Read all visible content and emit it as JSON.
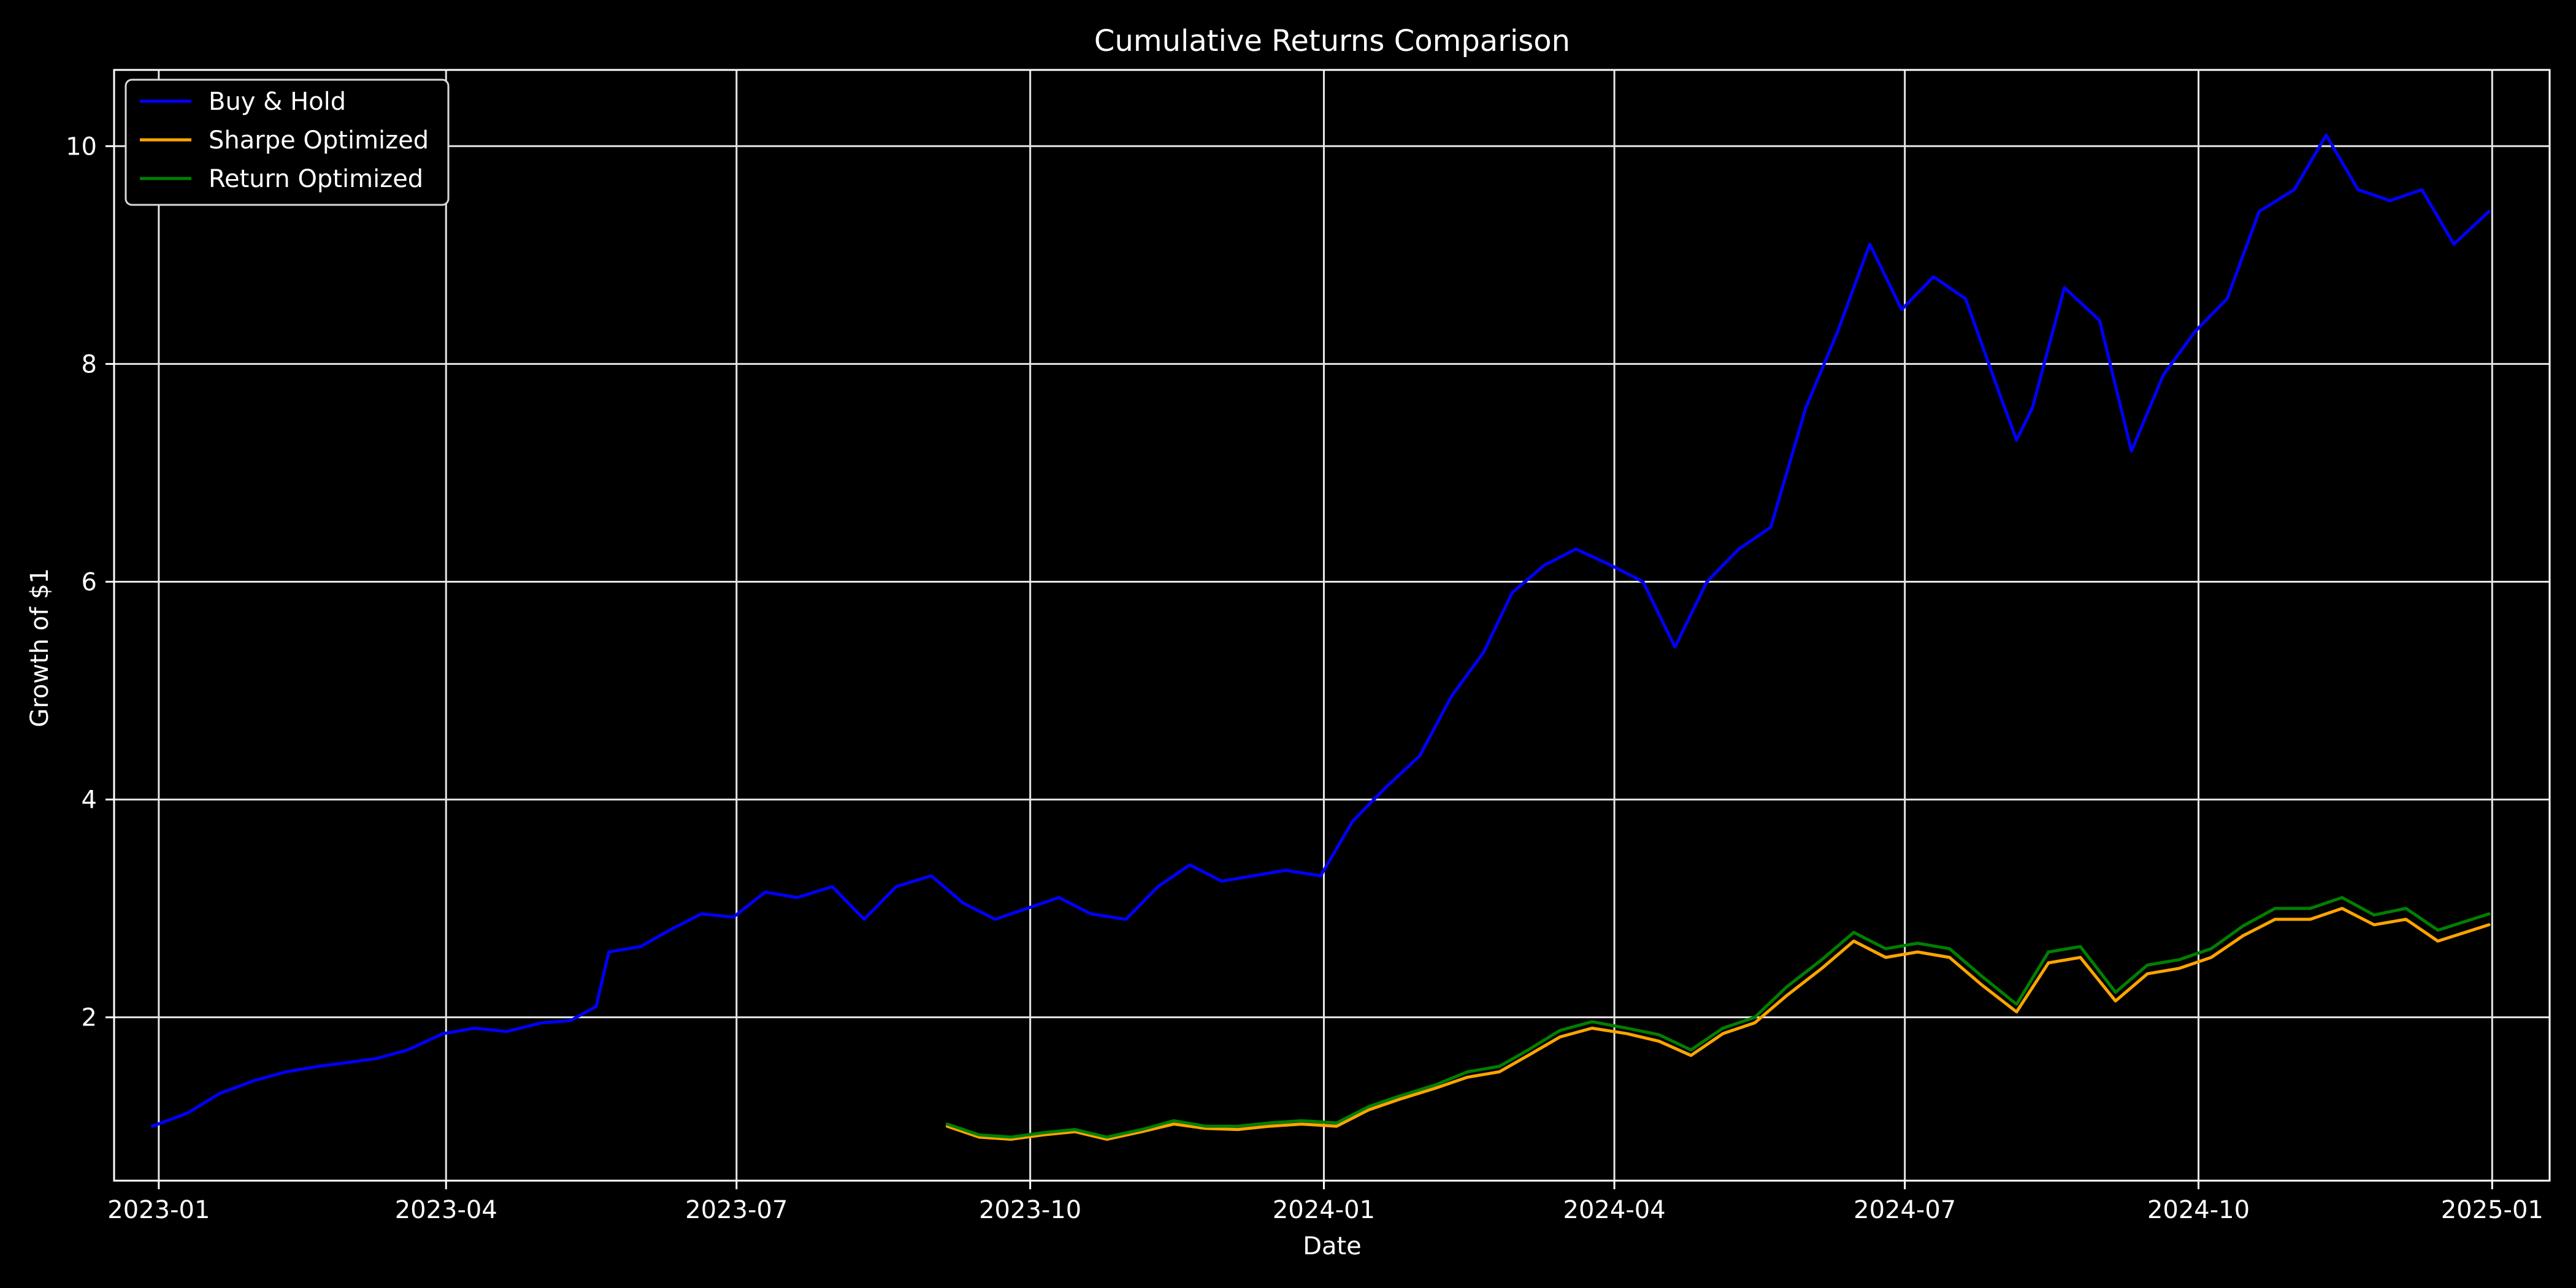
{
  "chart_data": {
    "type": "line",
    "title": "Cumulative Returns Comparison",
    "xlabel": "Date",
    "ylabel": "Growth of $1",
    "x_range": [
      "2022-12-18",
      "2025-01-19"
    ],
    "ylim": [
      0.5,
      10.7
    ],
    "grid": true,
    "legend_position": "top-left",
    "x_ticks": [
      "2023-01",
      "2023-04",
      "2023-07",
      "2023-10",
      "2024-01",
      "2024-04",
      "2024-07",
      "2024-10",
      "2025-01"
    ],
    "y_ticks": [
      2,
      4,
      6,
      8,
      10
    ],
    "x_tick_labels": [
      "2023-01",
      "2023-04",
      "2023-07",
      "2023-10",
      "2024-01",
      "2024-04",
      "2024-07",
      "2024-10",
      "2025-01"
    ],
    "y_tick_labels": [
      "2",
      "4",
      "6",
      "8",
      "10"
    ],
    "series": [
      {
        "name": "Buy & Hold",
        "color": "#0000ff",
        "x": [
          "2022-12-30",
          "2023-01-10",
          "2023-01-20",
          "2023-01-31",
          "2023-02-10",
          "2023-02-20",
          "2023-02-28",
          "2023-03-10",
          "2023-03-20",
          "2023-03-31",
          "2023-04-10",
          "2023-04-20",
          "2023-05-01",
          "2023-05-10",
          "2023-05-18",
          "2023-05-22",
          "2023-06-01",
          "2023-06-10",
          "2023-06-20",
          "2023-06-30",
          "2023-07-10",
          "2023-07-20",
          "2023-07-31",
          "2023-08-10",
          "2023-08-20",
          "2023-08-31",
          "2023-09-10",
          "2023-09-20",
          "2023-09-30",
          "2023-10-10",
          "2023-10-20",
          "2023-10-31",
          "2023-11-10",
          "2023-11-20",
          "2023-11-30",
          "2023-12-10",
          "2023-12-20",
          "2023-12-31",
          "2024-01-10",
          "2024-01-20",
          "2024-01-31",
          "2024-02-10",
          "2024-02-20",
          "2024-02-29",
          "2024-03-10",
          "2024-03-20",
          "2024-03-31",
          "2024-04-10",
          "2024-04-20",
          "2024-04-30",
          "2024-05-10",
          "2024-05-20",
          "2024-05-31",
          "2024-06-10",
          "2024-06-20",
          "2024-06-30",
          "2024-07-10",
          "2024-07-20",
          "2024-07-31",
          "2024-08-05",
          "2024-08-10",
          "2024-08-20",
          "2024-08-31",
          "2024-09-10",
          "2024-09-20",
          "2024-09-30",
          "2024-10-10",
          "2024-10-20",
          "2024-10-31",
          "2024-11-10",
          "2024-11-20",
          "2024-11-30",
          "2024-12-10",
          "2024-12-20",
          "2024-12-31"
        ],
        "values": [
          1.0,
          1.12,
          1.3,
          1.42,
          1.5,
          1.55,
          1.58,
          1.62,
          1.7,
          1.85,
          1.9,
          1.87,
          1.95,
          1.97,
          2.1,
          2.6,
          2.65,
          2.8,
          2.95,
          2.92,
          3.15,
          3.1,
          3.2,
          2.9,
          3.2,
          3.3,
          3.05,
          2.9,
          3.0,
          3.1,
          2.95,
          2.9,
          3.2,
          3.4,
          3.25,
          3.3,
          3.35,
          3.3,
          3.8,
          4.1,
          4.4,
          4.95,
          5.35,
          5.9,
          6.15,
          6.3,
          6.15,
          6.0,
          5.4,
          6.0,
          6.3,
          6.5,
          7.6,
          8.3,
          9.1,
          8.5,
          8.8,
          8.6,
          7.7,
          7.3,
          7.6,
          8.7,
          8.4,
          7.2,
          7.9,
          8.3,
          8.6,
          9.4,
          9.6,
          10.1,
          9.6,
          9.5,
          9.6,
          9.1,
          9.4
        ]
      },
      {
        "name": "Sharpe Optimized",
        "color": "#ffa500",
        "x": [
          "2023-09-05",
          "2023-09-15",
          "2023-09-25",
          "2023-10-05",
          "2023-10-15",
          "2023-10-25",
          "2023-11-05",
          "2023-11-15",
          "2023-11-25",
          "2023-12-05",
          "2023-12-15",
          "2023-12-25",
          "2024-01-05",
          "2024-01-15",
          "2024-01-25",
          "2024-02-05",
          "2024-02-15",
          "2024-02-25",
          "2024-03-05",
          "2024-03-15",
          "2024-03-25",
          "2024-04-05",
          "2024-04-15",
          "2024-04-25",
          "2024-05-05",
          "2024-05-15",
          "2024-05-25",
          "2024-06-05",
          "2024-06-15",
          "2024-06-25",
          "2024-07-05",
          "2024-07-15",
          "2024-07-25",
          "2024-08-05",
          "2024-08-15",
          "2024-08-25",
          "2024-09-05",
          "2024-09-15",
          "2024-09-25",
          "2024-10-05",
          "2024-10-15",
          "2024-10-25",
          "2024-11-05",
          "2024-11-15",
          "2024-11-25",
          "2024-12-05",
          "2024-12-15",
          "2024-12-31"
        ],
        "values": [
          1.0,
          0.9,
          0.88,
          0.92,
          0.95,
          0.88,
          0.95,
          1.02,
          0.98,
          0.97,
          1.0,
          1.02,
          1.0,
          1.15,
          1.25,
          1.35,
          1.45,
          1.5,
          1.65,
          1.82,
          1.9,
          1.85,
          1.78,
          1.65,
          1.85,
          1.95,
          2.2,
          2.45,
          2.7,
          2.55,
          2.6,
          2.55,
          2.3,
          2.05,
          2.5,
          2.55,
          2.15,
          2.4,
          2.45,
          2.55,
          2.75,
          2.9,
          2.9,
          3.0,
          2.85,
          2.9,
          2.7,
          2.85
        ]
      },
      {
        "name": "Return Optimized",
        "color": "#008000",
        "x": [
          "2023-09-05",
          "2023-09-15",
          "2023-09-25",
          "2023-10-05",
          "2023-10-15",
          "2023-10-25",
          "2023-11-05",
          "2023-11-15",
          "2023-11-25",
          "2023-12-05",
          "2023-12-15",
          "2023-12-25",
          "2024-01-05",
          "2024-01-15",
          "2024-01-25",
          "2024-02-05",
          "2024-02-15",
          "2024-02-25",
          "2024-03-05",
          "2024-03-15",
          "2024-03-25",
          "2024-04-05",
          "2024-04-15",
          "2024-04-25",
          "2024-05-05",
          "2024-05-15",
          "2024-05-25",
          "2024-06-05",
          "2024-06-15",
          "2024-06-25",
          "2024-07-05",
          "2024-07-15",
          "2024-07-25",
          "2024-08-05",
          "2024-08-15",
          "2024-08-25",
          "2024-09-05",
          "2024-09-15",
          "2024-09-25",
          "2024-10-05",
          "2024-10-15",
          "2024-10-25",
          "2024-11-05",
          "2024-11-15",
          "2024-11-25",
          "2024-12-05",
          "2024-12-15",
          "2024-12-31"
        ],
        "values": [
          1.02,
          0.92,
          0.9,
          0.94,
          0.97,
          0.9,
          0.97,
          1.05,
          1.0,
          1.0,
          1.03,
          1.05,
          1.03,
          1.18,
          1.28,
          1.38,
          1.5,
          1.55,
          1.7,
          1.88,
          1.96,
          1.9,
          1.84,
          1.7,
          1.9,
          2.0,
          2.28,
          2.53,
          2.78,
          2.63,
          2.68,
          2.63,
          2.38,
          2.12,
          2.6,
          2.65,
          2.23,
          2.48,
          2.53,
          2.63,
          2.84,
          3.0,
          3.0,
          3.1,
          2.94,
          3.0,
          2.8,
          2.95
        ]
      }
    ]
  }
}
